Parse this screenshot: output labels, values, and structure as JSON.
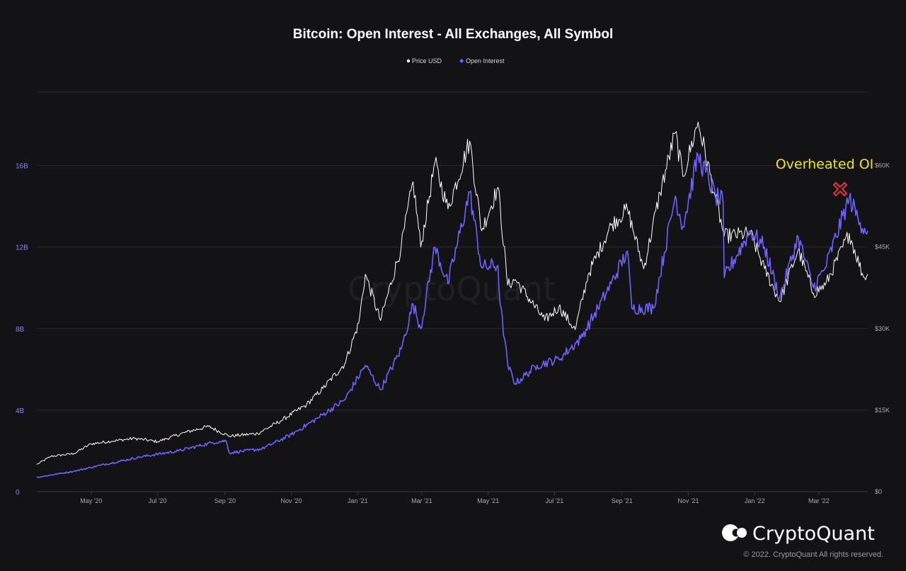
{
  "colors": {
    "background": "#131316",
    "price_line": "#ffffff",
    "open_interest_line": "#6b63ff",
    "annotation_text": "#f2e21b",
    "annotation_marker": "#e8323c",
    "grid": "#2a2a30"
  },
  "watermark": "CryptoQuant",
  "brand": {
    "name": "CryptoQuant",
    "logo_icon": "cryptoquant-logo-icon",
    "copyright": "© 2022. CryptoQuant All rights reserved."
  },
  "chart_data": {
    "type": "line",
    "title": "Bitcoin: Open Interest - All Exchanges, All Symbol",
    "legend": [
      "Price USD",
      "Open Interest"
    ],
    "legend_position": "top-center",
    "grid": "horizontal",
    "x_range": [
      "2020-03-12",
      "2022-04-15"
    ],
    "x_tick_labels": [
      "May '20",
      "Jul '20",
      "Sep '20",
      "Nov '20",
      "Jan '21",
      "Mar '21",
      "May '21",
      "Jul '21",
      "Sep '21",
      "Nov '21",
      "Jan '22",
      "Mar '22"
    ],
    "y_left": {
      "unit": "USD",
      "range": [
        0,
        19600000000
      ],
      "tick_labels": [
        "0",
        "4B",
        "8B",
        "12B",
        "16B"
      ]
    },
    "y_right": {
      "unit": "USD",
      "range": [
        0,
        73500
      ],
      "tick_labels": [
        "$0",
        "$15K",
        "$30K",
        "$45K",
        "$60K"
      ]
    },
    "annotation": {
      "text": "Overheated OI",
      "marker": "red-x",
      "date": "2022-03-29",
      "series": "Open Interest"
    },
    "series": [
      {
        "name": "Price USD",
        "axis": "right",
        "color": "#ffffff",
        "points": [
          [
            "2020-03-12",
            5000
          ],
          [
            "2020-03-25",
            6500
          ],
          [
            "2020-04-15",
            7000
          ],
          [
            "2020-05-01",
            8800
          ],
          [
            "2020-05-20",
            9300
          ],
          [
            "2020-06-10",
            9800
          ],
          [
            "2020-07-01",
            9200
          ],
          [
            "2020-07-28",
            11000
          ],
          [
            "2020-08-17",
            12000
          ],
          [
            "2020-09-05",
            10200
          ],
          [
            "2020-10-01",
            10700
          ],
          [
            "2020-10-22",
            13000
          ],
          [
            "2020-11-15",
            16000
          ],
          [
            "2020-11-30",
            19000
          ],
          [
            "2020-12-20",
            23500
          ],
          [
            "2021-01-02",
            31000
          ],
          [
            "2021-01-08",
            40000
          ],
          [
            "2021-01-22",
            31500
          ],
          [
            "2021-02-10",
            45000
          ],
          [
            "2021-02-21",
            57000
          ],
          [
            "2021-02-28",
            45000
          ],
          [
            "2021-03-13",
            60500
          ],
          [
            "2021-03-25",
            52000
          ],
          [
            "2021-04-14",
            64500
          ],
          [
            "2021-04-25",
            48000
          ],
          [
            "2021-05-10",
            56000
          ],
          [
            "2021-05-19",
            38000
          ],
          [
            "2021-05-26",
            39000
          ],
          [
            "2021-06-22",
            31500
          ],
          [
            "2021-07-05",
            34000
          ],
          [
            "2021-07-20",
            29800
          ],
          [
            "2021-08-01",
            40000
          ],
          [
            "2021-08-22",
            49000
          ],
          [
            "2021-09-06",
            52000
          ],
          [
            "2021-09-21",
            41000
          ],
          [
            "2021-10-06",
            55000
          ],
          [
            "2021-10-20",
            66000
          ],
          [
            "2021-10-27",
            58000
          ],
          [
            "2021-11-10",
            68000
          ],
          [
            "2021-11-26",
            54000
          ],
          [
            "2021-12-04",
            47000
          ],
          [
            "2021-12-28",
            47500
          ],
          [
            "2022-01-10",
            41000
          ],
          [
            "2022-01-24",
            35000
          ],
          [
            "2022-02-10",
            44500
          ],
          [
            "2022-02-24",
            36500
          ],
          [
            "2022-03-07",
            38000
          ],
          [
            "2022-03-29",
            47500
          ],
          [
            "2022-04-11",
            39500
          ],
          [
            "2022-04-15",
            40000
          ]
        ]
      },
      {
        "name": "Open Interest",
        "axis": "left",
        "color": "#6b63ff",
        "points": [
          [
            "2020-03-12",
            700000000
          ],
          [
            "2020-04-15",
            1000000000
          ],
          [
            "2020-05-10",
            1300000000
          ],
          [
            "2020-06-15",
            1700000000
          ],
          [
            "2020-07-20",
            2000000000
          ],
          [
            "2020-08-20",
            2400000000
          ],
          [
            "2020-09-02",
            2500000000
          ],
          [
            "2020-09-05",
            1900000000
          ],
          [
            "2020-10-05",
            2100000000
          ],
          [
            "2020-11-01",
            2800000000
          ],
          [
            "2020-11-25",
            3600000000
          ],
          [
            "2020-12-20",
            4500000000
          ],
          [
            "2021-01-08",
            6200000000
          ],
          [
            "2021-01-22",
            5000000000
          ],
          [
            "2021-02-10",
            7000000000
          ],
          [
            "2021-02-21",
            9200000000
          ],
          [
            "2021-02-28",
            8000000000
          ],
          [
            "2021-03-13",
            12000000000
          ],
          [
            "2021-03-25",
            10200000000
          ],
          [
            "2021-04-14",
            14700000000
          ],
          [
            "2021-04-25",
            11000000000
          ],
          [
            "2021-05-10",
            11100000000
          ],
          [
            "2021-05-12",
            9200000000
          ],
          [
            "2021-05-19",
            6200000000
          ],
          [
            "2021-05-26",
            5300000000
          ],
          [
            "2021-06-15",
            6200000000
          ],
          [
            "2021-07-05",
            6500000000
          ],
          [
            "2021-07-25",
            7500000000
          ],
          [
            "2021-08-10",
            9000000000
          ],
          [
            "2021-08-22",
            10200000000
          ],
          [
            "2021-09-06",
            11800000000
          ],
          [
            "2021-09-10",
            9000000000
          ],
          [
            "2021-09-30",
            9000000000
          ],
          [
            "2021-10-20",
            14500000000
          ],
          [
            "2021-10-27",
            13000000000
          ],
          [
            "2021-11-10",
            16500000000
          ],
          [
            "2021-11-26",
            14500000000
          ],
          [
            "2021-12-03",
            14200000000
          ],
          [
            "2021-12-04",
            10500000000
          ],
          [
            "2021-12-28",
            12800000000
          ],
          [
            "2022-01-10",
            12000000000
          ],
          [
            "2022-01-24",
            9500000000
          ],
          [
            "2022-02-10",
            12500000000
          ],
          [
            "2022-02-24",
            10000000000
          ],
          [
            "2022-03-07",
            11000000000
          ],
          [
            "2022-03-29",
            14400000000
          ],
          [
            "2022-04-08",
            13200000000
          ],
          [
            "2022-04-15",
            12800000000
          ]
        ]
      }
    ]
  }
}
